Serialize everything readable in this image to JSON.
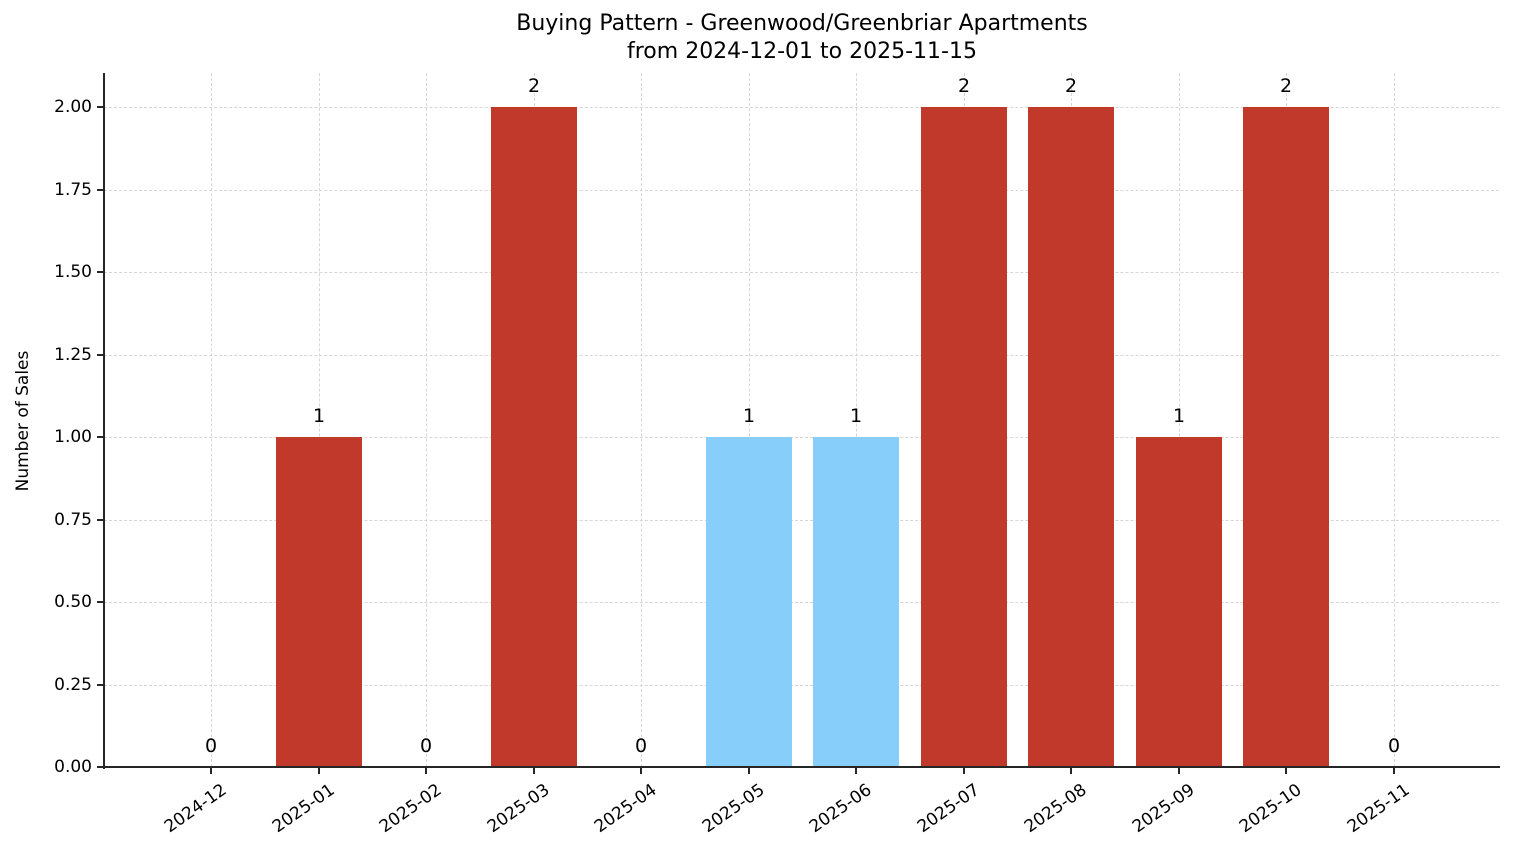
{
  "chart_data": {
    "type": "bar",
    "title": "Buying Pattern - Greenwood/Greenbriar Apartments",
    "subtitle": "from 2024-12-01 to 2025-11-15",
    "xlabel": "",
    "ylabel": "Number of Sales",
    "ylim": [
      0,
      2.1
    ],
    "yticks": [
      "0.00",
      "0.25",
      "0.50",
      "0.75",
      "1.00",
      "1.25",
      "1.50",
      "1.75",
      "2.00"
    ],
    "grid": true,
    "legend": null,
    "categories": [
      "2024-12",
      "2025-01",
      "2025-02",
      "2025-03",
      "2025-04",
      "2025-05",
      "2025-06",
      "2025-07",
      "2025-08",
      "2025-09",
      "2025-10",
      "2025-11"
    ],
    "values": [
      0,
      1,
      0,
      2,
      0,
      1,
      1,
      2,
      2,
      1,
      2,
      0
    ],
    "bar_colors": [
      "#c0392b",
      "#c0392b",
      "#c0392b",
      "#c0392b",
      "#c0392b",
      "#87cefa",
      "#87cefa",
      "#c0392b",
      "#c0392b",
      "#c0392b",
      "#c0392b",
      "#c0392b"
    ],
    "data_labels": [
      "0",
      "1",
      "0",
      "2",
      "0",
      "1",
      "1",
      "2",
      "2",
      "1",
      "2",
      "0"
    ]
  }
}
